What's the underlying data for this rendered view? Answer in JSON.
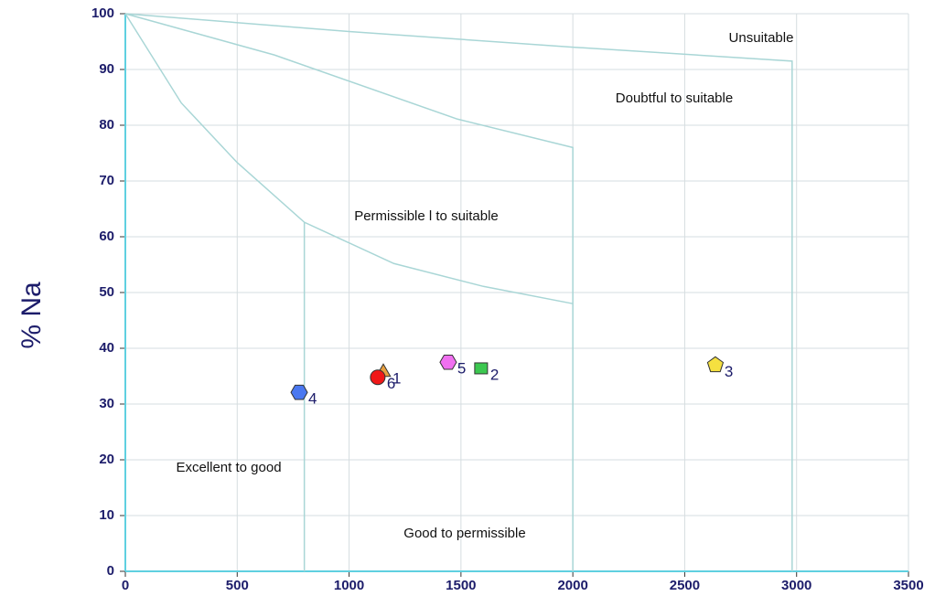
{
  "chart_data": {
    "type": "scatter",
    "ylabel": "% Na",
    "xlim": [
      0,
      3500
    ],
    "xticks": [
      0,
      500,
      1000,
      1500,
      2000,
      2500,
      3000,
      3500
    ],
    "ylim": [
      0,
      100
    ],
    "yticks": [
      0,
      10,
      20,
      30,
      40,
      50,
      60,
      70,
      80,
      90,
      100
    ],
    "grid": true,
    "series": [
      {
        "name": "1",
        "color": "#e8a040",
        "marker": "triangle",
        "x": [
          1153
        ],
        "values": [
          35.7
        ]
      },
      {
        "name": "2",
        "color": "#3cc850",
        "marker": "square",
        "x": [
          1590
        ],
        "values": [
          36.4
        ]
      },
      {
        "name": "3",
        "color": "#f5e040",
        "marker": "pentagon",
        "x": [
          2637
        ],
        "values": [
          37
        ]
      },
      {
        "name": "4",
        "color": "#4a78f0",
        "marker": "hexagon",
        "x": [
          777
        ],
        "values": [
          32.1
        ]
      },
      {
        "name": "5",
        "color": "#f070f0",
        "marker": "hexagon",
        "x": [
          1443
        ],
        "values": [
          37.5
        ]
      },
      {
        "name": "6",
        "color": "#f01818",
        "marker": "circle",
        "x": [
          1128
        ],
        "values": [
          34.8
        ]
      }
    ],
    "boundaries": [
      {
        "x": [
          0,
          1000,
          2000,
          2980,
          2980
        ],
        "values": [
          100,
          96.8,
          94,
          91.5,
          0
        ]
      },
      {
        "x": [
          0,
          666,
          1484,
          2000,
          2000
        ],
        "values": [
          100,
          92.6,
          81.1,
          76,
          0
        ]
      },
      {
        "x": [
          0,
          250,
          500,
          800,
          1200,
          1600,
          2000
        ],
        "values": [
          100,
          84,
          73.3,
          62.6,
          55.2,
          51.1,
          48
        ]
      },
      {
        "x": [
          800,
          800
        ],
        "values": [
          62.6,
          0
        ]
      }
    ],
    "annotations": [
      "Unsuitable",
      "Doubtful to suitable",
      "Permissible l to suitable",
      "Excellent to good",
      "Good to permissible"
    ]
  }
}
